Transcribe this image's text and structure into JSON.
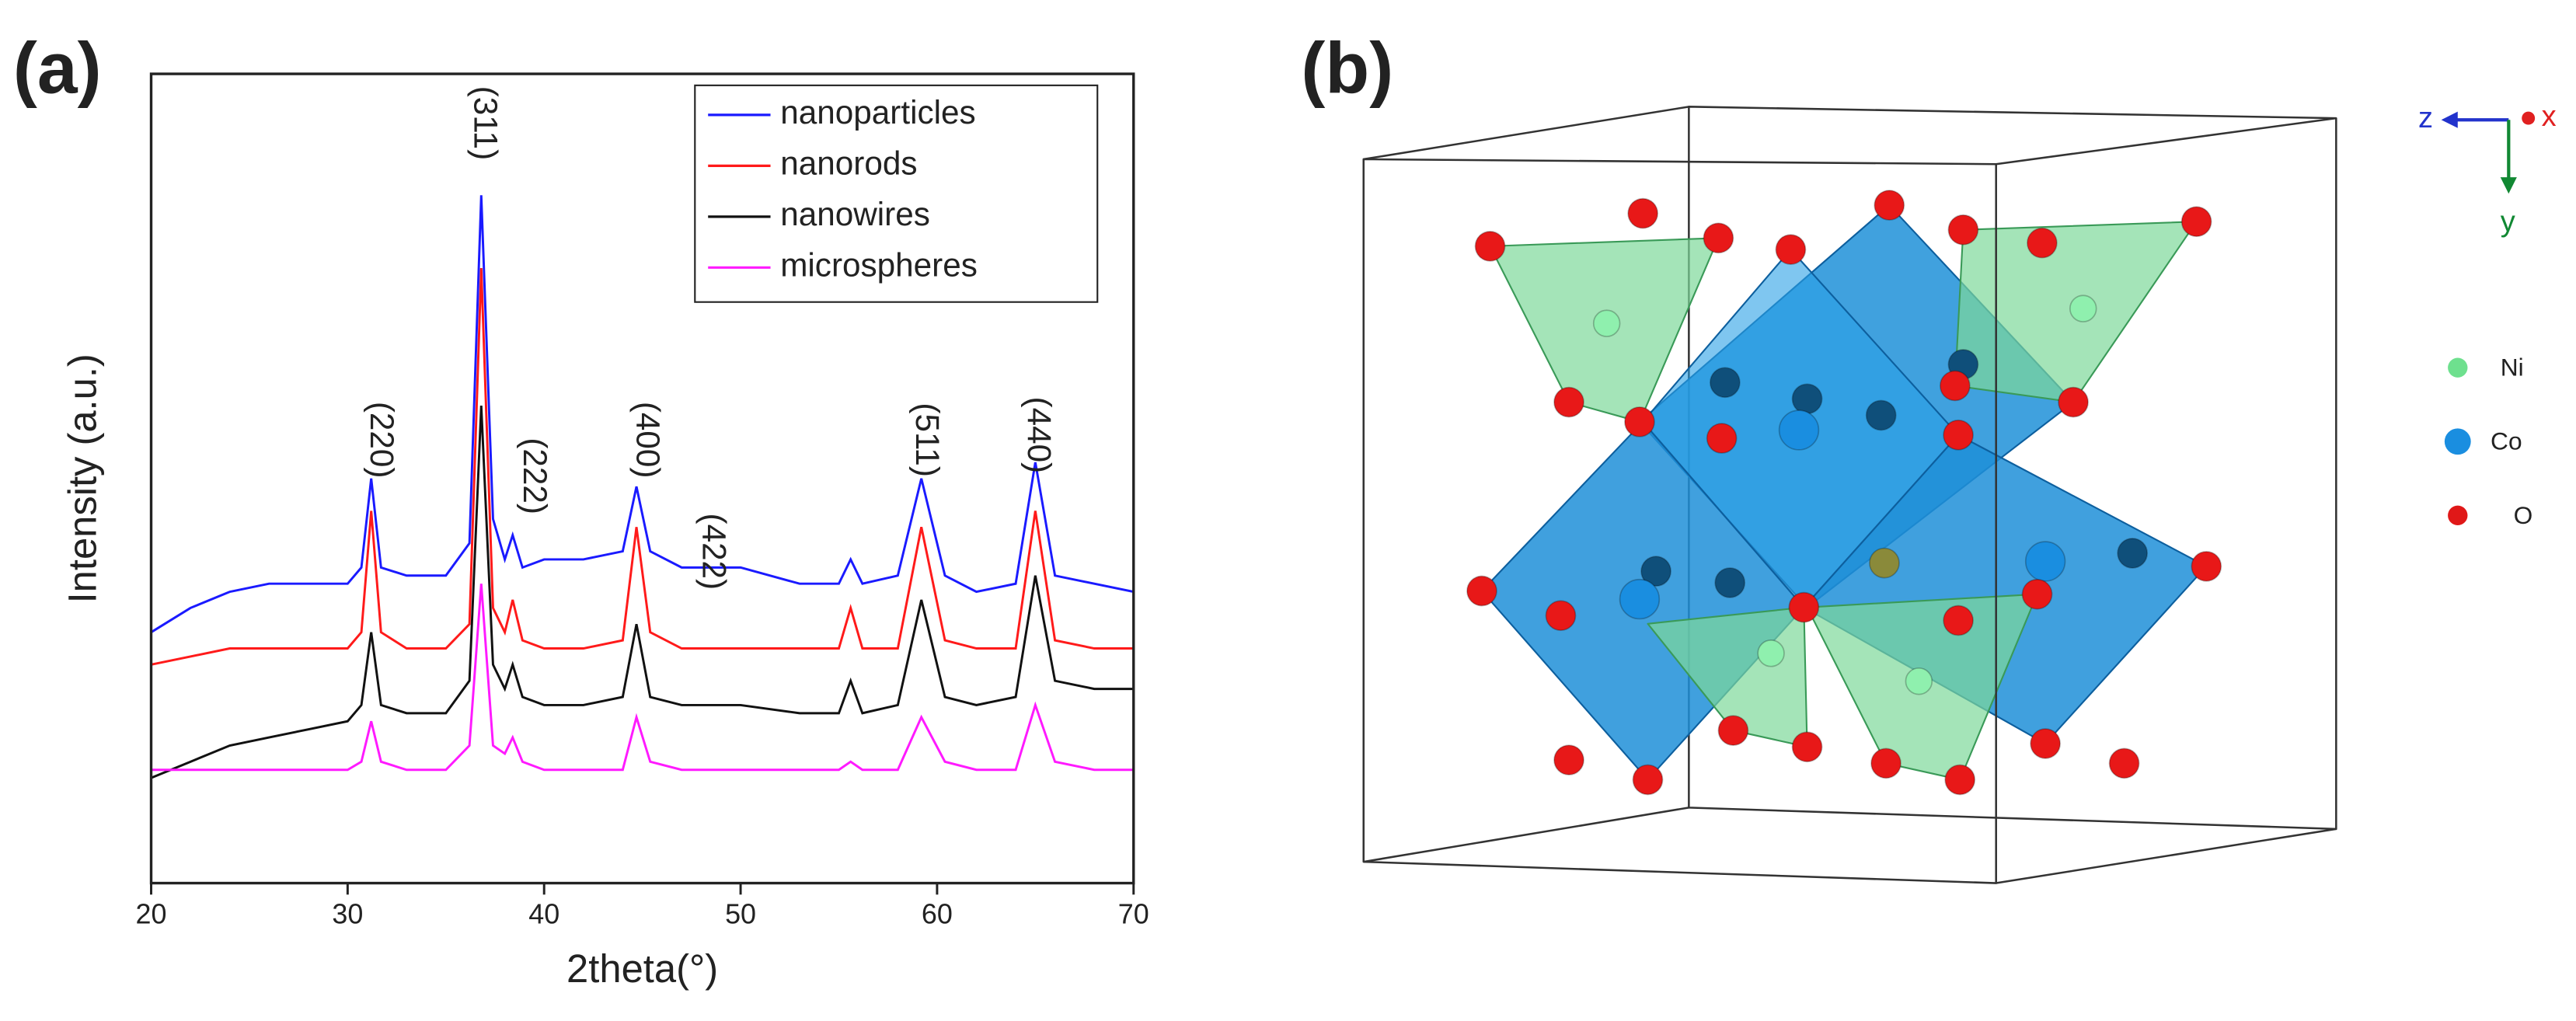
{
  "panels": [
    "(a)",
    "(b)"
  ],
  "chart_data": {
    "type": "line",
    "xlabel": "2theta(°)",
    "ylabel": "Intensity (a.u.)",
    "x": [
      20,
      22,
      24,
      26,
      28,
      30,
      30.7,
      31.2,
      31.7,
      33,
      35,
      36.2,
      36.8,
      37.4,
      38.0,
      38.4,
      38.9,
      40,
      42,
      44,
      44.7,
      45.4,
      47,
      50,
      53,
      55,
      55.6,
      56.2,
      58,
      59.2,
      60.4,
      62,
      64,
      65.0,
      66,
      68,
      70
    ],
    "series": [
      {
        "name": "nanoparticles",
        "color": "#1a1aff",
        "values": [
          31,
          34,
          36,
          37,
          37,
          37,
          39,
          50,
          39,
          38,
          38,
          42,
          85,
          45,
          40,
          43,
          39,
          40,
          40,
          41,
          49,
          41,
          39,
          39,
          37,
          37,
          40,
          37,
          38,
          50,
          38,
          36,
          37,
          52,
          38,
          37,
          36
        ]
      },
      {
        "name": "nanorods",
        "color": "#ff1a1a",
        "values": [
          27,
          28,
          29,
          29,
          29,
          29,
          31,
          46,
          31,
          29,
          29,
          32,
          76,
          34,
          31,
          35,
          30,
          29,
          29,
          30,
          44,
          31,
          29,
          29,
          29,
          29,
          34,
          29,
          29,
          44,
          30,
          29,
          29,
          46,
          30,
          29,
          29
        ]
      },
      {
        "name": "nanowires",
        "color": "#111111",
        "values": [
          13,
          15,
          17,
          18,
          19,
          20,
          22,
          31,
          22,
          21,
          21,
          25,
          59,
          27,
          24,
          27,
          23,
          22,
          22,
          23,
          32,
          23,
          22,
          22,
          21,
          21,
          25,
          21,
          22,
          35,
          23,
          22,
          23,
          38,
          25,
          24,
          24
        ]
      },
      {
        "name": "microspheres",
        "color": "#ff1aff",
        "values": [
          14,
          14,
          14,
          14,
          14,
          14,
          15,
          20,
          15,
          14,
          14,
          17,
          37,
          17,
          16,
          18,
          15,
          14,
          14,
          14,
          20.5,
          15,
          14,
          14,
          14,
          14,
          15,
          14,
          14,
          20.5,
          15,
          14,
          14,
          22,
          15,
          14,
          14
        ]
      }
    ],
    "annotations": [
      "(220)",
      "(311)",
      "(222)",
      "(400)",
      "(422)",
      "(511)",
      "(440)"
    ],
    "xlim": [
      20,
      70
    ],
    "xticks": [
      20,
      30,
      40,
      50,
      60,
      70
    ],
    "ylim": [
      0,
      100
    ],
    "legend": "upper right",
    "grid": false
  },
  "structure": {
    "axes": [
      "z",
      "x",
      "y"
    ],
    "legend": [
      "Ni",
      "Co",
      "O"
    ]
  }
}
